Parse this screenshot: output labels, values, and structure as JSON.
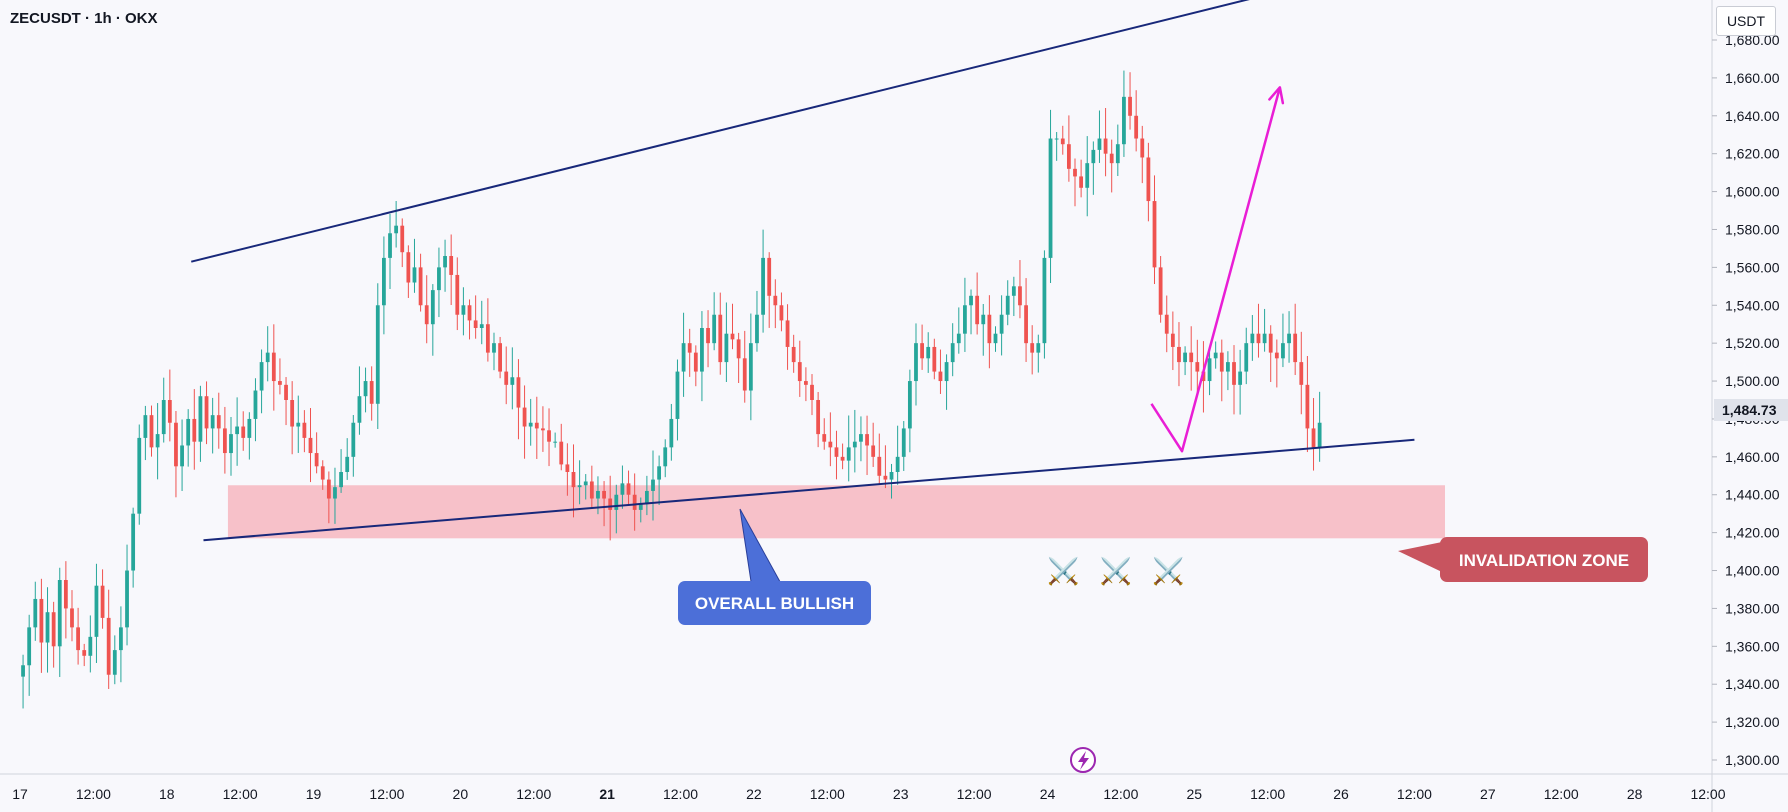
{
  "header": {
    "symbol": "ZECUSDT · 1h · OKX",
    "currency": "USDT"
  },
  "chart_data": {
    "type": "candlestick",
    "price_axis": {
      "ticks": [
        1300,
        1320,
        1340,
        1360,
        1380,
        1400,
        1420,
        1440,
        1460,
        1480,
        1500,
        1520,
        1540,
        1560,
        1580,
        1600,
        1620,
        1640,
        1660,
        1680
      ],
      "tick_labels": [
        "1,300.00",
        "1,320.00",
        "1,340.00",
        "1,360.00",
        "1,380.00",
        "1,400.00",
        "1,420.00",
        "1,440.00",
        "1,460.00",
        "1,480.00",
        "1,500.00",
        "1,520.00",
        "1,540.00",
        "1,560.00",
        "1,580.00",
        "1,600.00",
        "1,620.00",
        "1,640.00",
        "1,660.00",
        "1,680.00"
      ],
      "range": [
        1287,
        1710
      ],
      "current_price": 1484.73,
      "current_price_label": "1,484.73"
    },
    "time_axis": {
      "labels": [
        "17",
        "12:00",
        "18",
        "12:00",
        "19",
        "12:00",
        "20",
        "12:00",
        "21",
        "12:00",
        "22",
        "12:00",
        "23",
        "12:00",
        "24",
        "12:00",
        "25",
        "12:00",
        "26",
        "12:00",
        "27",
        "12:00",
        "28",
        "12:00"
      ],
      "bold_label": "21",
      "start_hour": 0,
      "end_hour": 276
    },
    "candles": {
      "start_hour": 0,
      "closes": [
        1350,
        1370,
        1385,
        1362,
        1378,
        1360,
        1395,
        1380,
        1370,
        1358,
        1355,
        1365,
        1392,
        1375,
        1345,
        1358,
        1370,
        1400,
        1430,
        1470,
        1482,
        1465,
        1472,
        1490,
        1478,
        1455,
        1466,
        1480,
        1468,
        1492,
        1475,
        1482,
        1475,
        1462,
        1472,
        1476,
        1470,
        1480,
        1495,
        1510,
        1515,
        1500,
        1498,
        1490,
        1476,
        1478,
        1470,
        1462,
        1455,
        1448,
        1438,
        1444,
        1452,
        1460,
        1478,
        1492,
        1500,
        1488,
        1540,
        1565,
        1578,
        1582,
        1568,
        1552,
        1560,
        1540,
        1530,
        1548,
        1560,
        1566,
        1556,
        1535,
        1540,
        1532,
        1528,
        1530,
        1515,
        1520,
        1505,
        1498,
        1502,
        1486,
        1476,
        1478,
        1475,
        1474,
        1468,
        1468,
        1456,
        1452,
        1444,
        1445,
        1447,
        1438,
        1442,
        1438,
        1432,
        1440,
        1446,
        1440,
        1432,
        1435,
        1442,
        1448,
        1455,
        1465,
        1480,
        1505,
        1520,
        1515,
        1505,
        1528,
        1520,
        1535,
        1510,
        1525,
        1522,
        1512,
        1495,
        1520,
        1535,
        1565,
        1545,
        1540,
        1532,
        1518,
        1510,
        1500,
        1498,
        1490,
        1472,
        1468,
        1465,
        1460,
        1458,
        1465,
        1468,
        1472,
        1466,
        1460,
        1450,
        1448,
        1452,
        1460,
        1475,
        1500,
        1520,
        1512,
        1518,
        1505,
        1500,
        1510,
        1520,
        1525,
        1540,
        1545,
        1530,
        1535,
        1520,
        1525,
        1535,
        1545,
        1550,
        1540,
        1520,
        1515,
        1520,
        1565,
        1628,
        1628,
        1625,
        1612,
        1608,
        1602,
        1615,
        1622,
        1628,
        1620,
        1615,
        1625,
        1650,
        1640,
        1628,
        1618,
        1595,
        1560,
        1535,
        1525,
        1518,
        1510,
        1515,
        1510,
        1505,
        1500,
        1512,
        1515,
        1505,
        1510,
        1498,
        1505,
        1520,
        1525,
        1520,
        1525,
        1515,
        1512,
        1520,
        1525,
        1510,
        1498,
        1475,
        1465,
        1478
      ],
      "colors": {
        "up": "#26a69a",
        "down": "#ef5350"
      }
    },
    "upper_trendline": {
      "from": {
        "hour": 28,
        "price": 1563
      },
      "to": {
        "hour": 214,
        "price": 1712
      }
    },
    "lower_trendline": {
      "from": {
        "hour": 30,
        "price": 1416
      },
      "to": {
        "hour": 228,
        "price": 1469
      }
    },
    "invalidation_zone": {
      "hour_from": 34,
      "hour_to": 233,
      "price_from": 1417,
      "price_to": 1445,
      "fill": "#f7c1c9"
    },
    "projection_arrow": {
      "points": [
        {
          "hour": 185,
          "price": 1488
        },
        {
          "hour": 190,
          "price": 1463
        },
        {
          "hour": 206,
          "price": 1655
        }
      ],
      "color": "#e91ed5"
    },
    "annotations": {
      "overall_bullish": "OVERALL BULLISH",
      "invalidation_zone": "INVALIDATION ZONE",
      "swords": "⚔️ ⚔️ ⚔️"
    },
    "colors": {
      "trendline": "#18287a",
      "bullish_callout": "#4c6fd8",
      "invalidation_callout": "#c8545f"
    },
    "grid": false
  }
}
